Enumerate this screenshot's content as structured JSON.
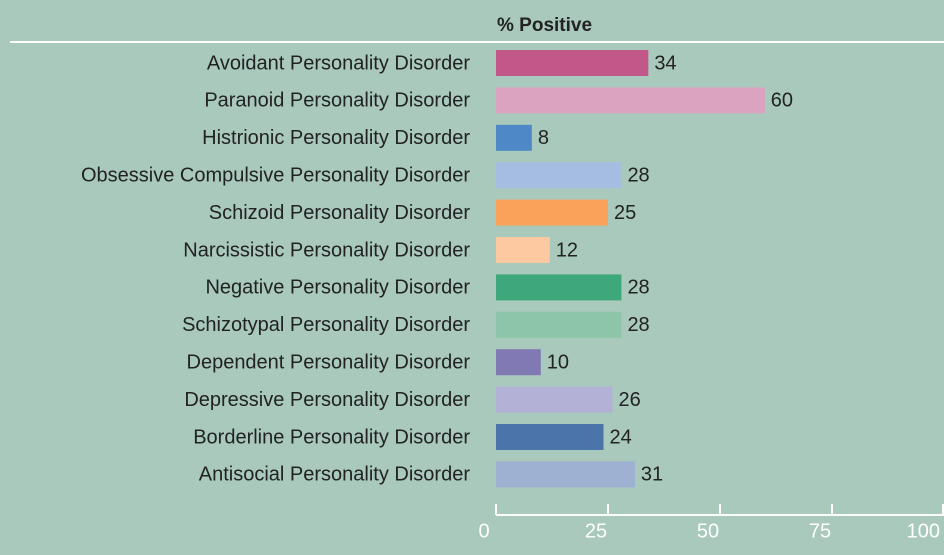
{
  "chart_data": {
    "type": "bar",
    "orientation": "horizontal",
    "title": "% Positive",
    "categories": [
      "Avoidant Personality Disorder",
      "Paranoid Personality Disorder",
      "Histrionic Personality Disorder",
      "Obsessive Compulsive Personality Disorder",
      "Schizoid Personality Disorder",
      "Narcissistic Personality Disorder",
      "Negative Personality Disorder",
      "Schizotypal Personality Disorder",
      "Dependent Personality Disorder",
      "Depressive Personality Disorder",
      "Borderline Personality Disorder",
      "Antisocial Personality Disorder"
    ],
    "values": [
      34,
      60,
      8,
      28,
      25,
      12,
      28,
      28,
      10,
      26,
      24,
      31
    ],
    "colors": [
      "#c2578a",
      "#dba3c0",
      "#4f88c6",
      "#a5bde0",
      "#f9a35a",
      "#fdc9a0",
      "#3fa87a",
      "#8cc5a8",
      "#8179b4",
      "#b3b1d6",
      "#4a74aa",
      "#9fb1d3"
    ],
    "xlim": [
      0,
      100
    ],
    "xticks": [
      0,
      25,
      50,
      75,
      100
    ]
  }
}
